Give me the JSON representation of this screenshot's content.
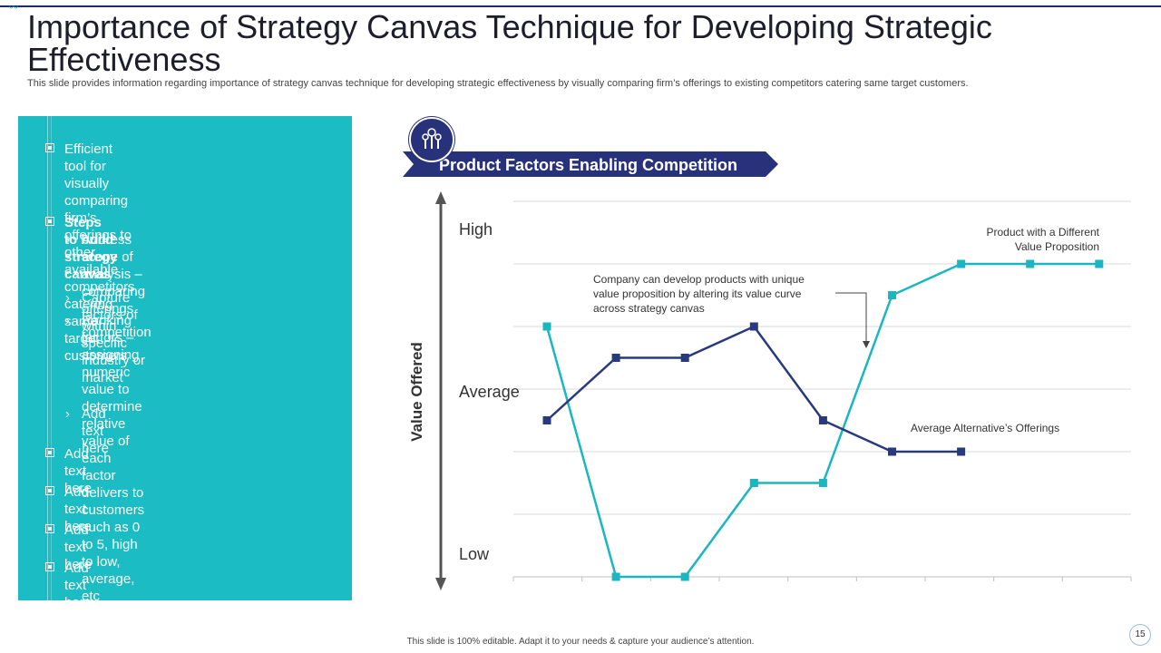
{
  "title": "Importance of Strategy Canvas Technique for Developing Strategic Effectiveness",
  "subtitle": "This slide provides information regarding importance of strategy canvas technique for developing strategic effectiveness by visually comparing firm’s offerings to existing competitors catering same target customers.",
  "left_panel": {
    "bullet1": "Efficient tool for visually comparing firm’s\nofferings to other available competitors\ncatering same target customers",
    "bullet2": "Steps to build strategy canvas",
    "sub1": "Address scope of analysis –\ncomparing offerings within specific\nindustry or market",
    "sub2": "Capture factors of competition",
    "sub3": "Ranking factors – assigning numeric\nvalue to determine relative value of\neach factor delivers to customers\nsuch as 0 to 5, high to low,\naverage, etc",
    "sub4": "Add text here",
    "bullet3": "Add text here",
    "bullet4": "Add text here",
    "bullet5": "Add text here",
    "bullet6": "Add text here",
    "chevron": "›"
  },
  "banner": "Product Factors Enabling Competition",
  "footer": "This slide is 100% editable. Adapt it to your needs & capture your audience’s attention.",
  "page_number": "15",
  "chart_data": {
    "type": "line",
    "ylabel": "Value Offered",
    "y_tick_labels": [
      "High",
      "Average",
      "Low"
    ],
    "ylim": [
      0,
      6
    ],
    "x": [
      1,
      2,
      3,
      4,
      5,
      6,
      7,
      8,
      9
    ],
    "series": [
      {
        "name": "Product with a Different Value Proposition",
        "color": "#1bb7c0",
        "values": [
          4,
          0,
          0,
          1.5,
          1.5,
          4.5,
          5,
          5,
          5
        ]
      },
      {
        "name": "Average Alternative’s Offerings",
        "color": "#283a7d",
        "values": [
          2.5,
          3.5,
          3.5,
          4,
          2.5,
          2,
          2,
          null,
          null
        ]
      }
    ],
    "annotations": {
      "teal_label": "Product with a Different\nValue Proposition",
      "navy_label": "Average Alternative’s Offerings",
      "callout": "Company can develop products with unique\nvalue proposition by altering its value curve\nacross strategy canvas"
    },
    "colors": {
      "grid": "#d9d9d9",
      "axis_arrow": "#555555",
      "banner": "#27327a"
    }
  }
}
